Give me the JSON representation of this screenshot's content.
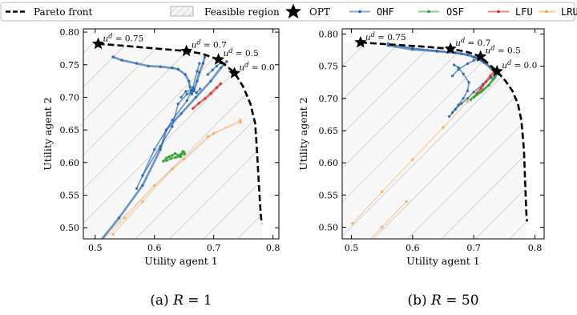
{
  "legend": {
    "items": [
      {
        "key": "pareto",
        "label": "Pareto front",
        "mono": false
      },
      {
        "key": "feasible",
        "label": "Feasible region",
        "mono": false
      },
      {
        "key": "opt",
        "label": "OPT",
        "mono": false
      },
      {
        "key": "OHF",
        "label": "OHF",
        "mono": true
      },
      {
        "key": "OSF",
        "label": "OSF",
        "mono": true
      },
      {
        "key": "LFU",
        "label": "LFU",
        "mono": true
      },
      {
        "key": "LRU",
        "label": "LRU",
        "mono": true
      }
    ]
  },
  "colors": {
    "OHF": "#1f5fa8",
    "OSF": "#2ca02c",
    "LFU": "#d62728",
    "LRU": "#f5a14a",
    "pareto": "#000000",
    "feasible": "#9a9a9a"
  },
  "chart_data": [
    {
      "type": "line",
      "caption": {
        "prefix": "(a) ",
        "var": "R",
        "rest": " = 1"
      },
      "xlabel": "Utility agent 1",
      "ylabel": "Utility agent 2",
      "xlim": [
        0.48,
        0.81
      ],
      "ylim": [
        0.483,
        0.805
      ],
      "xticks": [
        0.5,
        0.6,
        0.7,
        0.8
      ],
      "yticks": [
        0.5,
        0.55,
        0.6,
        0.65,
        0.7,
        0.75,
        0.8
      ],
      "pareto_front": [
        [
          0.505,
          0.782
        ],
        [
          0.55,
          0.779
        ],
        [
          0.6,
          0.775
        ],
        [
          0.654,
          0.771
        ],
        [
          0.68,
          0.767
        ],
        [
          0.708,
          0.758
        ],
        [
          0.735,
          0.738
        ],
        [
          0.75,
          0.716
        ],
        [
          0.762,
          0.69
        ],
        [
          0.77,
          0.66
        ],
        [
          0.773,
          0.62
        ],
        [
          0.776,
          0.57
        ],
        [
          0.779,
          0.525
        ],
        [
          0.781,
          0.506
        ]
      ],
      "opt_points": [
        {
          "x": 0.505,
          "y": 0.782,
          "label_base": "u",
          "label_sup": "d",
          "label_value": " = 0.75"
        },
        {
          "x": 0.654,
          "y": 0.771,
          "label_base": "u",
          "label_sup": "d",
          "label_value": " = 0.7"
        },
        {
          "x": 0.708,
          "y": 0.758,
          "label_base": "u",
          "label_sup": "d",
          "label_value": " = 0.5"
        },
        {
          "x": 0.735,
          "y": 0.737,
          "label_base": "u",
          "label_sup": "d",
          "label_value": " = 0.0"
        }
      ],
      "series": [
        {
          "name": "LRU",
          "lines": [
            [
              [
                0.53,
                0.49
              ],
              [
                0.58,
                0.54
              ],
              [
                0.63,
                0.59
              ],
              [
                0.69,
                0.64
              ],
              [
                0.745,
                0.665
              ]
            ],
            [
              [
                0.5,
                0.47
              ],
              [
                0.55,
                0.515
              ],
              [
                0.6,
                0.565
              ],
              [
                0.65,
                0.605
              ],
              [
                0.7,
                0.645
              ],
              [
                0.745,
                0.662
              ]
            ]
          ]
        },
        {
          "name": "OHF",
          "lines": [
            [
              [
                0.5,
                0.47
              ],
              [
                0.54,
                0.515
              ],
              [
                0.58,
                0.565
              ],
              [
                0.61,
                0.62
              ],
              [
                0.62,
                0.65
              ],
              [
                0.645,
                0.675
              ],
              [
                0.67,
                0.7
              ],
              [
                0.695,
                0.725
              ],
              [
                0.712,
                0.745
              ],
              [
                0.722,
                0.755
              ]
            ],
            [
              [
                0.57,
                0.56
              ],
              [
                0.6,
                0.62
              ],
              [
                0.63,
                0.665
              ],
              [
                0.655,
                0.695
              ],
              [
                0.665,
                0.715
              ],
              [
                0.672,
                0.74
              ],
              [
                0.676,
                0.752
              ]
            ],
            [
              [
                0.58,
                0.58
              ],
              [
                0.61,
                0.625
              ],
              [
                0.63,
                0.655
              ],
              [
                0.64,
                0.69
              ],
              [
                0.655,
                0.705
              ],
              [
                0.665,
                0.71
              ]
            ],
            [
              [
                0.53,
                0.762
              ],
              [
                0.545,
                0.757
              ],
              [
                0.57,
                0.752
              ],
              [
                0.59,
                0.748
              ],
              [
                0.61,
                0.747
              ],
              [
                0.63,
                0.745
              ],
              [
                0.64,
                0.743
              ],
              [
                0.652,
                0.735
              ],
              [
                0.658,
                0.725
              ],
              [
                0.66,
                0.716
              ],
              [
                0.663,
                0.705
              ],
              [
                0.667,
                0.712
              ],
              [
                0.672,
                0.725
              ],
              [
                0.676,
                0.738
              ],
              [
                0.682,
                0.752
              ],
              [
                0.685,
                0.762
              ]
            ],
            [
              [
                0.645,
                0.7
              ],
              [
                0.653,
                0.709
              ],
              [
                0.663,
                0.711
              ],
              [
                0.671,
                0.707
              ],
              [
                0.677,
                0.713
              ]
            ],
            [
              [
                0.69,
                0.735
              ],
              [
                0.698,
                0.742
              ],
              [
                0.705,
                0.748
              ],
              [
                0.712,
                0.753
              ]
            ]
          ]
        },
        {
          "name": "LFU",
          "lines": [
            [
              [
                0.665,
                0.683
              ],
              [
                0.675,
                0.691
              ],
              [
                0.685,
                0.698
              ],
              [
                0.695,
                0.706
              ],
              [
                0.705,
                0.715
              ],
              [
                0.712,
                0.721
              ]
            ]
          ]
        },
        {
          "name": "OSF",
          "lines": [
            [
              [
                0.615,
                0.602
              ],
              [
                0.62,
                0.607
              ],
              [
                0.625,
                0.609
              ],
              [
                0.63,
                0.611
              ],
              [
                0.635,
                0.614
              ],
              [
                0.64,
                0.611
              ],
              [
                0.645,
                0.613
              ],
              [
                0.648,
                0.617
              ],
              [
                0.651,
                0.613
              ]
            ],
            [
              [
                0.62,
                0.603
              ],
              [
                0.628,
                0.606
              ],
              [
                0.636,
                0.608
              ],
              [
                0.644,
                0.609
              ],
              [
                0.65,
                0.616
              ]
            ]
          ]
        }
      ]
    },
    {
      "type": "line",
      "caption": {
        "prefix": "(b) ",
        "var": "R",
        "rest": " = 50"
      },
      "xlabel": "Utility agent 1",
      "ylabel": "Utility agent 2",
      "xlim": [
        0.485,
        0.815
      ],
      "ylim": [
        0.482,
        0.808
      ],
      "xticks": [
        0.5,
        0.6,
        0.7,
        0.8
      ],
      "yticks": [
        0.5,
        0.55,
        0.6,
        0.65,
        0.7,
        0.75,
        0.8
      ],
      "pareto_front": [
        [
          0.515,
          0.787
        ],
        [
          0.56,
          0.784
        ],
        [
          0.61,
          0.781
        ],
        [
          0.662,
          0.777
        ],
        [
          0.69,
          0.772
        ],
        [
          0.711,
          0.765
        ],
        [
          0.738,
          0.742
        ],
        [
          0.752,
          0.727
        ],
        [
          0.763,
          0.712
        ],
        [
          0.772,
          0.692
        ],
        [
          0.778,
          0.665
        ],
        [
          0.782,
          0.62
        ],
        [
          0.784,
          0.57
        ],
        [
          0.786,
          0.52
        ],
        [
          0.787,
          0.509
        ]
      ],
      "opt_points": [
        {
          "x": 0.515,
          "y": 0.787,
          "label_base": "u",
          "label_sup": "d",
          "label_value": " = 0.75"
        },
        {
          "x": 0.662,
          "y": 0.777,
          "label_base": "u",
          "label_sup": "d",
          "label_value": " = 0.7"
        },
        {
          "x": 0.711,
          "y": 0.765,
          "label_base": "u",
          "label_sup": "d",
          "label_value": " = 0.5"
        },
        {
          "x": 0.738,
          "y": 0.742,
          "label_base": "u",
          "label_sup": "d",
          "label_value": " = 0.0"
        }
      ],
      "series": [
        {
          "name": "LRU",
          "lines": [
            [
              [
                0.502,
                0.506
              ],
              [
                0.55,
                0.555
              ],
              [
                0.6,
                0.605
              ],
              [
                0.65,
                0.655
              ],
              [
                0.69,
                0.695
              ],
              [
                0.715,
                0.72
              ]
            ],
            [
              [
                0.52,
                0.47
              ],
              [
                0.55,
                0.5
              ],
              [
                0.59,
                0.54
              ]
            ]
          ]
        },
        {
          "name": "OHF",
          "lines": [
            [
              [
                0.56,
                0.782
              ],
              [
                0.6,
                0.776
              ],
              [
                0.64,
                0.773
              ],
              [
                0.67,
                0.771
              ],
              [
                0.69,
                0.768
              ],
              [
                0.705,
                0.763
              ],
              [
                0.718,
                0.755
              ],
              [
                0.73,
                0.745
              ],
              [
                0.738,
                0.742
              ]
            ],
            [
              [
                0.56,
                0.785
              ],
              [
                0.6,
                0.778
              ],
              [
                0.64,
                0.774
              ],
              [
                0.68,
                0.769
              ],
              [
                0.7,
                0.764
              ],
              [
                0.715,
                0.757
              ],
              [
                0.727,
                0.749
              ],
              [
                0.737,
                0.743
              ]
            ],
            [
              [
                0.665,
                0.735
              ],
              [
                0.675,
                0.745
              ],
              [
                0.69,
                0.754
              ],
              [
                0.7,
                0.759
              ],
              [
                0.71,
                0.763
              ]
            ],
            [
              [
                0.665,
                0.678
              ],
              [
                0.675,
                0.69
              ],
              [
                0.683,
                0.7
              ],
              [
                0.69,
                0.712
              ],
              [
                0.692,
                0.725
              ],
              [
                0.683,
                0.738
              ],
              [
                0.675,
                0.748
              ],
              [
                0.668,
                0.752
              ]
            ],
            [
              [
                0.66,
                0.672
              ],
              [
                0.67,
                0.683
              ],
              [
                0.68,
                0.692
              ],
              [
                0.69,
                0.7
              ],
              [
                0.7,
                0.71
              ],
              [
                0.715,
                0.722
              ],
              [
                0.728,
                0.732
              ],
              [
                0.738,
                0.74
              ]
            ]
          ]
        },
        {
          "name": "LFU",
          "lines": [
            [
              [
                0.705,
                0.708
              ],
              [
                0.712,
                0.716
              ],
              [
                0.72,
                0.726
              ],
              [
                0.727,
                0.735
              ],
              [
                0.733,
                0.741
              ]
            ]
          ]
        },
        {
          "name": "OSF",
          "lines": [
            [
              [
                0.695,
                0.698
              ],
              [
                0.705,
                0.706
              ],
              [
                0.715,
                0.713
              ],
              [
                0.725,
                0.721
              ],
              [
                0.732,
                0.73
              ],
              [
                0.738,
                0.738
              ]
            ],
            [
              [
                0.7,
                0.702
              ],
              [
                0.712,
                0.71
              ],
              [
                0.724,
                0.72
              ],
              [
                0.735,
                0.733
              ]
            ]
          ]
        }
      ]
    }
  ]
}
